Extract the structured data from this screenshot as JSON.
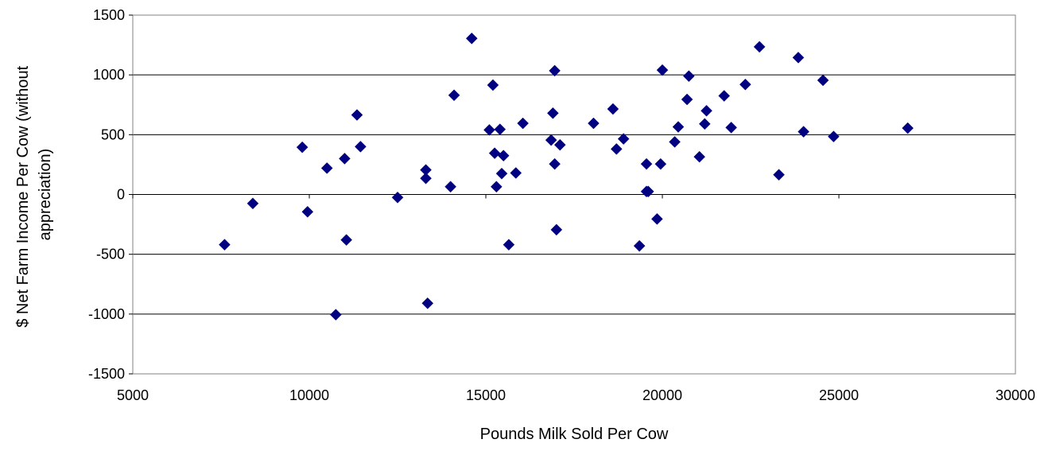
{
  "chart_data": {
    "type": "scatter",
    "title": "",
    "xlabel": "Pounds Milk Sold Per Cow",
    "ylabel_lines": [
      "$ Net Farm Income Per Cow (without",
      "appreciation)"
    ],
    "xlim": [
      5000,
      30000
    ],
    "ylim": [
      -1500,
      1500
    ],
    "x_ticks": [
      5000,
      10000,
      15000,
      20000,
      25000,
      30000
    ],
    "y_ticks": [
      -1500,
      -1000,
      -500,
      0,
      500,
      1000,
      1500
    ],
    "x_tick_labels": [
      "5000",
      "10000",
      "15000",
      "20000",
      "25000",
      "30000"
    ],
    "y_tick_labels": [
      "-1500",
      "-1000",
      "-500",
      "0",
      "500",
      "1000",
      "1500"
    ],
    "horizontal_gridlines": true,
    "marker_color": "#000080",
    "marker_shape": "diamond",
    "series": [
      {
        "points": [
          [
            7600,
            -420
          ],
          [
            8400,
            -75
          ],
          [
            9800,
            395
          ],
          [
            9950,
            -145
          ],
          [
            10500,
            220
          ],
          [
            10750,
            -1005
          ],
          [
            11000,
            300
          ],
          [
            11050,
            -380
          ],
          [
            11350,
            665
          ],
          [
            11450,
            400
          ],
          [
            12500,
            -25
          ],
          [
            13300,
            205
          ],
          [
            13300,
            135
          ],
          [
            13350,
            -910
          ],
          [
            14000,
            65
          ],
          [
            14100,
            830
          ],
          [
            14600,
            1305
          ],
          [
            15100,
            540
          ],
          [
            15200,
            915
          ],
          [
            15250,
            345
          ],
          [
            15300,
            65
          ],
          [
            15400,
            545
          ],
          [
            15450,
            175
          ],
          [
            15500,
            325
          ],
          [
            15650,
            -420
          ],
          [
            15850,
            180
          ],
          [
            16050,
            595
          ],
          [
            16850,
            455
          ],
          [
            16900,
            680
          ],
          [
            16950,
            255
          ],
          [
            16950,
            1035
          ],
          [
            17000,
            -295
          ],
          [
            17100,
            415
          ],
          [
            18050,
            595
          ],
          [
            18600,
            715
          ],
          [
            18700,
            380
          ],
          [
            18900,
            465
          ],
          [
            19350,
            -430
          ],
          [
            19550,
            255
          ],
          [
            19550,
            25
          ],
          [
            19600,
            25
          ],
          [
            19850,
            -205
          ],
          [
            19950,
            255
          ],
          [
            20000,
            1040
          ],
          [
            20350,
            440
          ],
          [
            20450,
            565
          ],
          [
            20700,
            795
          ],
          [
            20750,
            990
          ],
          [
            21050,
            315
          ],
          [
            21200,
            590
          ],
          [
            21250,
            700
          ],
          [
            21750,
            825
          ],
          [
            21950,
            560
          ],
          [
            22350,
            920
          ],
          [
            22750,
            1235
          ],
          [
            23300,
            165
          ],
          [
            23850,
            1145
          ],
          [
            24000,
            525
          ],
          [
            24550,
            955
          ],
          [
            24850,
            485
          ],
          [
            26950,
            555
          ]
        ]
      }
    ]
  }
}
